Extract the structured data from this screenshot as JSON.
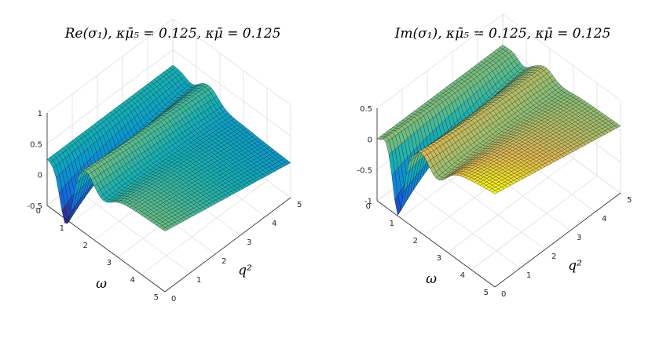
{
  "chart_data": [
    {
      "type": "surface",
      "title": "Re(σ₁), κμ̄₅ = 0.125, κμ̄ = 0.125",
      "xlabel": "q²",
      "ylabel": "ω",
      "zlabel": "",
      "xlim": [
        0,
        5
      ],
      "ylim": [
        0,
        5
      ],
      "zlim": [
        -0.5,
        1
      ],
      "xticks": [
        "0",
        "1",
        "2",
        "3",
        "4",
        "5"
      ],
      "yticks": [
        "0",
        "1",
        "2",
        "3",
        "4",
        "5"
      ],
      "zticks": [
        "-0.5",
        "0",
        "0.5",
        "1"
      ],
      "grid": true,
      "colormap": "parula",
      "shape": {
        "z_at_omega0": 0.25,
        "min_near_omega": 0.8,
        "min_value": -0.6,
        "peak_near_omega": 1.6,
        "peak_value": 0.22,
        "high_omega_q0_value": 0.5,
        "high_omega_q5_value": 0.05
      }
    },
    {
      "type": "surface",
      "title": "Im(σ₁), κμ̄₅ = 0.125, κμ̄ = 0.125",
      "xlabel": "q²",
      "ylabel": "ω",
      "zlabel": "",
      "xlim": [
        0,
        5
      ],
      "ylim": [
        0,
        5
      ],
      "zlim": [
        -1,
        0.5
      ],
      "xticks": [
        "0",
        "1",
        "2",
        "3",
        "4",
        "5"
      ],
      "yticks": [
        "0",
        "1",
        "2",
        "3",
        "4",
        "5"
      ],
      "zticks": [
        "-1",
        "-0.5",
        "0",
        "0.5"
      ],
      "grid": true,
      "colormap": "parula",
      "shape": {
        "z_at_omega0": 0.0,
        "bump_near_omega": 0.35,
        "bump_value": 0.1,
        "min_near_omega": 0.9,
        "min_value": -1.0,
        "peak_near_omega": 1.8,
        "peak_value": 0.25,
        "high_omega_q0_value": 0.6,
        "high_omega_q5_value": 0.1
      }
    }
  ]
}
